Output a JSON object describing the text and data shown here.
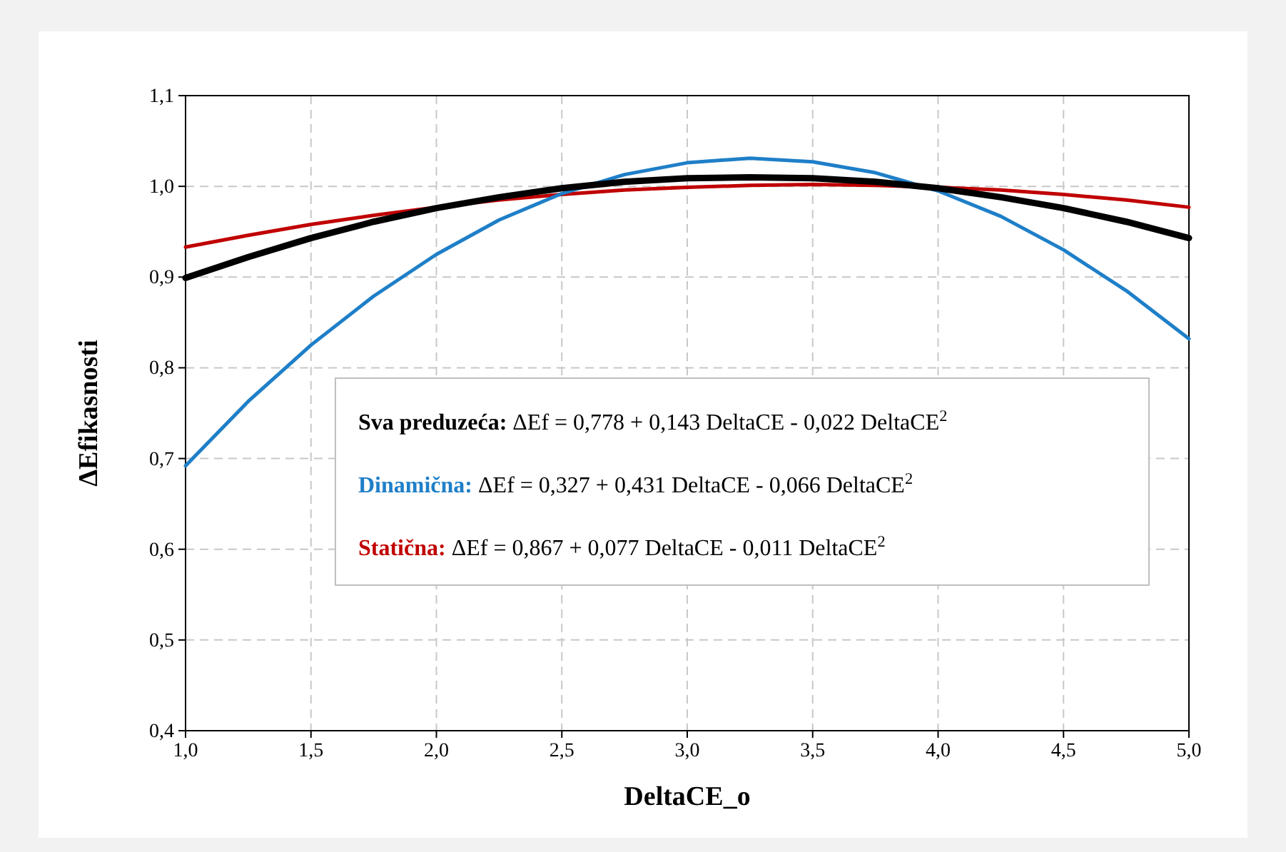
{
  "chart_data": {
    "type": "line",
    "xlabel": "DeltaCE_o",
    "ylabel": "ΔEfikasnosti",
    "x": [
      1,
      1.25,
      1.5,
      1.75,
      2,
      2.25,
      2.5,
      2.75,
      3,
      3.25,
      3.5,
      3.75,
      4,
      4.25,
      4.5,
      4.75,
      5
    ],
    "series": [
      {
        "name": "Sva preduzeća:",
        "color": "#000000",
        "values": [
          0.899,
          0.922,
          0.943,
          0.961,
          0.976,
          0.988,
          0.998,
          1.005,
          1.009,
          1.01,
          1.009,
          1.005,
          0.998,
          0.988,
          0.976,
          0.961,
          0.943
        ]
      },
      {
        "name": "Dinamična:",
        "color": "#1f7fc8",
        "values": [
          0.692,
          0.763,
          0.825,
          0.879,
          0.925,
          0.963,
          0.992,
          1.013,
          1.026,
          1.031,
          1.027,
          1.015,
          0.995,
          0.967,
          0.93,
          0.885,
          0.832
        ]
      },
      {
        "name": "Statična:",
        "color": "#c00000",
        "values": [
          0.933,
          0.946,
          0.958,
          0.968,
          0.977,
          0.985,
          0.991,
          0.996,
          0.999,
          1.001,
          1.002,
          1.001,
          0.999,
          0.996,
          0.991,
          0.985,
          0.977
        ]
      }
    ],
    "annotations": [
      "ΔEf = 0,778 + 0,143 DeltaCE - 0,022 DeltaCE$^{2}$",
      "ΔEf = 0,327 + 0,431 DeltaCE - 0,066 DeltaCE$^{2}$",
      "ΔEf = 0,867 + 0,077 DeltaCE - 0,011 DeltaCE$^{2}$"
    ],
    "xlim": [
      1,
      5
    ],
    "ylim": [
      0.4,
      1.1
    ],
    "xticks": [
      {
        "value": 1,
        "label": "1,0"
      },
      {
        "value": 1.5,
        "label": "1,5"
      },
      {
        "value": 2,
        "label": "2,0"
      },
      {
        "value": 2.5,
        "label": "2,5"
      },
      {
        "value": 3,
        "label": "3,0"
      },
      {
        "value": 3.5,
        "label": "3,5"
      },
      {
        "value": 4,
        "label": "4,0"
      },
      {
        "value": 4.5,
        "label": "4,5"
      },
      {
        "value": 5,
        "label": "5,0"
      }
    ],
    "yticks": [
      {
        "value": 0.4,
        "label": "0,4"
      },
      {
        "value": 0.5,
        "label": "0,5"
      },
      {
        "value": 0.6,
        "label": "0,6"
      },
      {
        "value": 0.7,
        "label": "0,7"
      },
      {
        "value": 0.8,
        "label": "0,8"
      },
      {
        "value": 0.9,
        "label": "0,9"
      },
      {
        "value": 1,
        "label": "1,0"
      },
      {
        "value": 1.1,
        "label": "1,1"
      }
    ],
    "grid": true,
    "legend": "center",
    "line_style": "solid",
    "marker": "none"
  }
}
